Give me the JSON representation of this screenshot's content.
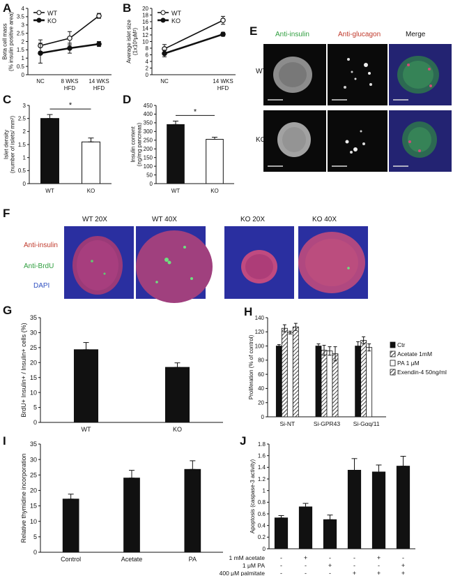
{
  "panels": {
    "A": {
      "letter": "A"
    },
    "B": {
      "letter": "B"
    },
    "C": {
      "letter": "C"
    },
    "D": {
      "letter": "D"
    },
    "E": {
      "letter": "E"
    },
    "F": {
      "letter": "F"
    },
    "G": {
      "letter": "G"
    },
    "H": {
      "letter": "H"
    },
    "I": {
      "letter": "I"
    },
    "J": {
      "letter": "J"
    }
  },
  "microscopy_E": {
    "col_headers": [
      "Anti-insulin",
      "Anti-glucagon",
      "Merge"
    ],
    "col_colors": [
      "#2e9e3e",
      "#c0392b",
      "#111111"
    ],
    "row_labels": [
      "WT",
      "KO"
    ]
  },
  "microscopy_F": {
    "image_titles": [
      "WT 20X",
      "WT 40X",
      "KO 20X",
      "KO 40X"
    ],
    "stain_labels": [
      "Anti-insulin",
      "Anti-BrdU",
      "DAPI"
    ],
    "stain_colors": [
      "#c0392b",
      "#2e9e3e",
      "#3050c0"
    ]
  },
  "chart_data": [
    {
      "panel": "A",
      "type": "line",
      "ylabel": "Beta cell mass\n(% insulin positive area)",
      "categories": [
        "NC",
        "8 WKS\nHFD",
        "14 WKS\nHFD"
      ],
      "ylim": [
        0,
        4
      ],
      "yticks": [
        0,
        0.5,
        1,
        1.5,
        2,
        2.5,
        3,
        3.5,
        4
      ],
      "legend": "top-left",
      "series": [
        {
          "name": "WT",
          "marker": "open",
          "values": [
            1.75,
            2.2,
            3.55
          ],
          "errors": [
            0.35,
            0.4,
            0.15
          ]
        },
        {
          "name": "KO",
          "marker": "filled",
          "values": [
            1.3,
            1.6,
            1.85
          ],
          "errors": [
            0.6,
            0.3,
            0.15
          ]
        }
      ]
    },
    {
      "panel": "B",
      "type": "line",
      "ylabel": "Average islet size\n(1x10³μM²)",
      "categories": [
        "NC",
        "14 WKS\nHFD"
      ],
      "ylim": [
        0,
        20
      ],
      "yticks": [
        0,
        2,
        4,
        6,
        8,
        10,
        12,
        14,
        16,
        18,
        20
      ],
      "legend": "top-left",
      "series": [
        {
          "name": "WT",
          "marker": "open",
          "values": [
            7.8,
            16.4
          ],
          "errors": [
            1.3,
            1.2
          ]
        },
        {
          "name": "KO",
          "marker": "filled",
          "values": [
            6.4,
            12.2
          ],
          "errors": [
            1.0,
            0.6
          ]
        }
      ]
    },
    {
      "panel": "C",
      "type": "bar",
      "ylabel": "Islet density\n(number of islets/ mm²)",
      "categories": [
        "WT",
        "KO"
      ],
      "values": [
        2.5,
        1.6
      ],
      "errors": [
        0.15,
        0.15
      ],
      "fills": [
        "#111111",
        "#ffffff"
      ],
      "ylim": [
        0,
        3
      ],
      "yticks": [
        0,
        0.5,
        1,
        1.5,
        2,
        2.5,
        3
      ],
      "significance": "*"
    },
    {
      "panel": "D",
      "type": "bar",
      "ylabel": "Insulin content\n(ng/mg pancreas)",
      "categories": [
        "WT",
        "KO"
      ],
      "values": [
        340,
        255
      ],
      "errors": [
        20,
        12
      ],
      "fills": [
        "#111111",
        "#ffffff"
      ],
      "ylim": [
        0,
        450
      ],
      "yticks": [
        0,
        50,
        100,
        150,
        200,
        250,
        300,
        350,
        400,
        450
      ],
      "significance": "*"
    },
    {
      "panel": "G",
      "type": "bar",
      "ylabel": "BrdU+ Insulin+ / Insulin+ cells (%)",
      "categories": [
        "WT",
        "KO"
      ],
      "values": [
        24.3,
        18.4
      ],
      "errors": [
        2.4,
        1.5
      ],
      "fills": [
        "#111111",
        "#111111"
      ],
      "ylim": [
        0,
        35
      ],
      "yticks": [
        0,
        5,
        10,
        15,
        20,
        25,
        30,
        35
      ]
    },
    {
      "panel": "H",
      "type": "bar",
      "ylabel": "Proliferation (% of control)",
      "categories": [
        "Si-NT",
        "Si-GPR43",
        "Si-Gαq/11"
      ],
      "ylim": [
        0,
        140
      ],
      "yticks": [
        0,
        20,
        40,
        60,
        80,
        100,
        120,
        140
      ],
      "legend": "right",
      "series": [
        {
          "name": "Ctr",
          "pattern": "solid",
          "values": [
            100,
            100,
            100
          ],
          "errors": [
            2,
            3,
            6
          ]
        },
        {
          "name": "Acetate 1mM",
          "pattern": "hatch",
          "values": [
            125,
            94,
            108
          ],
          "errors": [
            5,
            7,
            5
          ]
        },
        {
          "name": "PA 1 μM",
          "pattern": "open",
          "values": [
            119,
            93,
            98
          ],
          "errors": [
            2,
            6,
            5
          ]
        },
        {
          "name": "Exendin-4 50ng/ml",
          "pattern": "hatch",
          "values": [
            127,
            89,
            0
          ],
          "errors": [
            5,
            10,
            0
          ]
        }
      ]
    },
    {
      "panel": "I",
      "type": "bar",
      "ylabel": "Relative thymidine incorporation",
      "categories": [
        "Control",
        "Acetate",
        "PA"
      ],
      "values": [
        17.2,
        24.0,
        26.8
      ],
      "errors": [
        1.6,
        2.5,
        2.8
      ],
      "fills": [
        "#111111",
        "#111111",
        "#111111"
      ],
      "ylim": [
        0,
        35
      ],
      "yticks": [
        0,
        5,
        10,
        15,
        20,
        25,
        30,
        35
      ]
    },
    {
      "panel": "J",
      "type": "bar",
      "ylabel": "Apoptosis (caspase-3 activity)",
      "categories": [
        "",
        "",
        "",
        "",
        "",
        ""
      ],
      "values": [
        0.53,
        0.72,
        0.5,
        1.35,
        1.32,
        1.42
      ],
      "errors": [
        0.04,
        0.06,
        0.08,
        0.2,
        0.12,
        0.17
      ],
      "fills": [
        "#111111",
        "#111111",
        "#111111",
        "#111111",
        "#111111",
        "#111111"
      ],
      "ylim": [
        0,
        1.8
      ],
      "yticks": [
        0,
        0.2,
        0.4,
        0.6,
        0.8,
        1,
        1.2,
        1.4,
        1.6,
        1.8
      ],
      "conditions": [
        {
          "label": "1 mM acetate",
          "signs": [
            "-",
            "+",
            "-",
            "-",
            "+",
            "-"
          ]
        },
        {
          "label": "1 μM PA",
          "signs": [
            "-",
            "-",
            "+",
            "-",
            "-",
            "+"
          ]
        },
        {
          "label": "400 μM palmitate",
          "signs": [
            "-",
            "-",
            "-",
            "+",
            "+",
            "+"
          ]
        }
      ]
    }
  ]
}
